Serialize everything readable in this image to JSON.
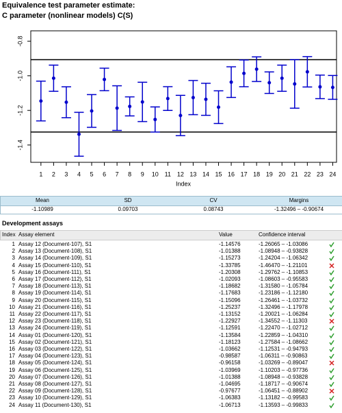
{
  "title": "Equivalence test parameter estimate:",
  "subtitle": "C parameter (nonlinear models) C(S)",
  "chart_data": {
    "type": "errorbar",
    "x_label": "Index",
    "color": "#0000cc",
    "hline_color": "#000000",
    "x": [
      1,
      2,
      3,
      4,
      5,
      6,
      7,
      8,
      9,
      10,
      11,
      12,
      13,
      14,
      15,
      16,
      17,
      18,
      19,
      20,
      21,
      22,
      23,
      24
    ],
    "values": [
      -1.14576,
      -1.01388,
      -1.15273,
      -1.33785,
      -1.20308,
      -1.02093,
      -1.18682,
      -1.17683,
      -1.15096,
      -1.25237,
      -1.13152,
      -1.22927,
      -1.12591,
      -1.13584,
      -1.18123,
      -1.03662,
      -0.98587,
      -0.96158,
      -1.03969,
      -1.01388,
      -1.04695,
      -0.97677,
      -1.06383,
      -1.06713
    ],
    "lower": [
      -1.26065,
      -1.08948,
      -1.24204,
      -1.4647,
      -1.29762,
      -1.08603,
      -1.3158,
      -1.23186,
      -1.26461,
      -1.32496,
      -1.20021,
      -1.34552,
      -1.2247,
      -1.22859,
      -1.27584,
      -1.12531,
      -1.06311,
      -1.03269,
      -1.10203,
      -1.08948,
      -1.18717,
      -1.06451,
      -1.13182,
      -1.13593
    ],
    "upper": [
      -1.03086,
      -0.93828,
      -1.06342,
      -1.21101,
      -1.10853,
      -0.95583,
      -1.05784,
      -1.1218,
      -1.03732,
      -1.17978,
      -1.06284,
      -1.11303,
      -1.02712,
      -1.0431,
      -1.08662,
      -0.94793,
      -0.90863,
      -0.89047,
      -0.97736,
      -0.93828,
      -0.90674,
      -0.88902,
      -0.99583,
      -0.99833
    ],
    "hlines": [
      -1.32496,
      -0.90674
    ],
    "xlim": [
      0.2,
      24.3
    ],
    "ylim": [
      -1.5,
      -0.74
    ],
    "xticks": [
      1,
      2,
      3,
      4,
      5,
      6,
      7,
      8,
      9,
      10,
      11,
      12,
      13,
      14,
      15,
      16,
      17,
      18,
      19,
      20,
      21,
      22,
      23,
      24
    ],
    "yticks": [
      -0.8,
      {
        "value": -1,
        "label": "-1.0"
      },
      -1.2,
      -1.4
    ]
  },
  "summary": {
    "headers": [
      "Mean",
      "SD",
      "CV",
      "Margins"
    ],
    "values": [
      "-1.10989",
      "0.09703",
      "0.08743",
      "-1.32496 – -0.90674"
    ]
  },
  "assays": {
    "title": "Development assays",
    "headers": [
      "Index",
      "Assay element",
      "Value",
      "Confidence interval"
    ],
    "rows": [
      [
        "1",
        "Assay 12 (Document-107), S1",
        "-1.14576",
        "-1.26065 – -1.03086"
      ],
      [
        "2",
        "Assay 13 (Document-108), S1",
        "-1.01388",
        "-1.08948 – -0.93828"
      ],
      [
        "3",
        "Assay 14 (Document-109), S1",
        "-1.15273",
        "-1.24204 – -1.06342"
      ],
      [
        "4",
        "Assay 15 (Document-110), S1",
        "-1.33785",
        "-1.46470 – -1.21101"
      ],
      [
        "5",
        "Assay 16 (Document-111), S1",
        "-1.20308",
        "-1.29762 – -1.10853"
      ],
      [
        "6",
        "Assay 17 (Document-112), S1",
        "-1.02093",
        "-1.08603 – -0.95583"
      ],
      [
        "7",
        "Assay 18 (Document-113), S1",
        "-1.18682",
        "-1.31580 – -1.05784"
      ],
      [
        "8",
        "Assay 19 (Document-114), S1",
        "-1.17683",
        "-1.23186 – -1.12180"
      ],
      [
        "9",
        "Assay 20 (Document-115), S1",
        "-1.15096",
        "-1.26461 – -1.03732"
      ],
      [
        "10",
        "Assay 21 (Document-116), S1",
        "-1.25237",
        "-1.32496 – -1.17978"
      ],
      [
        "11",
        "Assay 22 (Document-117), S1",
        "-1.13152",
        "-1.20021 – -1.06284"
      ],
      [
        "12",
        "Assay 23 (Document-118), S1",
        "-1.22927",
        "-1.34552 – -1.11303"
      ],
      [
        "13",
        "Assay 24 (Document-119), S1",
        "-1.12591",
        "-1.22470 – -1.02712"
      ],
      [
        "14",
        "Assay 01 (Document-120), S1",
        "-1.13584",
        "-1.22859 – -1.04310"
      ],
      [
        "15",
        "Assay 02 (Document-121), S1",
        "-1.18123",
        "-1.27584 – -1.08662"
      ],
      [
        "16",
        "Assay 03 (Document-122), S1",
        "-1.03662",
        "-1.12531 – -0.94793"
      ],
      [
        "17",
        "Assay 04 (Document-123), S1",
        "-0.98587",
        "-1.06311 – -0.90863"
      ],
      [
        "18",
        "Assay 05 (Document-124), S1",
        "-0.96158",
        "-1.03269 – -0.89047"
      ],
      [
        "19",
        "Assay 06 (Document-125), S1",
        "-1.03969",
        "-1.10203 – -0.97736"
      ],
      [
        "20",
        "Assay 07 (Document-126), S1",
        "-1.01388",
        "-1.08948 – -0.93828"
      ],
      [
        "21",
        "Assay 08 (Document-127), S1",
        "-1.04695",
        "-1.18717 – -0.90674"
      ],
      [
        "22",
        "Assay 09 (Document-128), S1",
        "-0.97677",
        "-1.06451 – -0.88902"
      ],
      [
        "23",
        "Assay 10 (Document-129), S1",
        "-1.06383",
        "-1.13182 – -0.99583"
      ],
      [
        "24",
        "Assay 11 (Document-130), S1",
        "-1.06713",
        "-1.13593 – -0.99833"
      ]
    ],
    "pass": [
      true,
      true,
      true,
      false,
      true,
      true,
      true,
      true,
      true,
      true,
      true,
      false,
      true,
      true,
      true,
      true,
      true,
      false,
      true,
      true,
      true,
      false,
      true,
      true
    ]
  }
}
